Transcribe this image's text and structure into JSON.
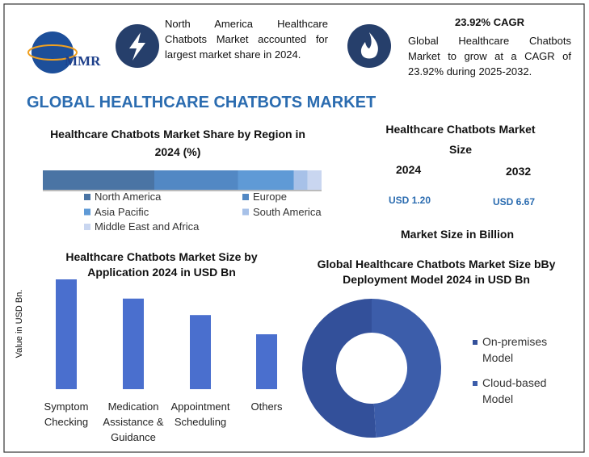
{
  "header": {
    "logo": "MMR",
    "highlight_1": "North America Healthcare Chatbots Market accounted for largest market share in 2024.",
    "highlight_2_title": "23.92% CAGR",
    "highlight_2": "Global Healthcare Chatbots Market to grow at a CAGR of 23.92% during 2025-2032.",
    "title": "GLOBAL HEALTHCARE CHATBOTS MARKET"
  },
  "market_size": {
    "title": "Healthcare Chatbots Market Size",
    "years": [
      "2024",
      "2032"
    ],
    "values": [
      "USD 1.20",
      "USD 6.67"
    ],
    "note": "Market Size in Billion"
  },
  "chart_data": [
    {
      "type": "stacked-bar",
      "title": "Healthcare Chatbots Market Share by Region in 2024 (%)",
      "series": [
        {
          "name": "North America",
          "color": "#4a74a4",
          "values": [
            40
          ]
        },
        {
          "name": "Europe",
          "color": "#5288c4",
          "values": [
            30
          ]
        },
        {
          "name": "Asia Pacific",
          "color": "#5f9ad6",
          "values": [
            20
          ]
        },
        {
          "name": "South America",
          "color": "#a7c1e8",
          "values": [
            5
          ]
        },
        {
          "name": "Middle East and Africa",
          "color": "#c9d6f0",
          "values": [
            5
          ]
        }
      ]
    },
    {
      "type": "bar",
      "title": "Healthcare Chatbots Market Size by Application 2024 in USD Bn",
      "y_label": "Value in USD Bn.",
      "categories": [
        "Symptom Checking",
        "Medication Assistance & Guidance",
        "Appointment Scheduling",
        "Others"
      ],
      "values": [
        0.4,
        0.33,
        0.27,
        0.2
      ],
      "color": "#4a6fce"
    },
    {
      "type": "donut",
      "title": "Global Healthcare Chatbots Market Size bBy Deployment Model 2024 in USD Bn",
      "categories": [
        "On-premises Model",
        "Cloud-based Model"
      ],
      "values": [
        51,
        49
      ],
      "colors": [
        "#33509a",
        "#3c5daa"
      ]
    }
  ]
}
